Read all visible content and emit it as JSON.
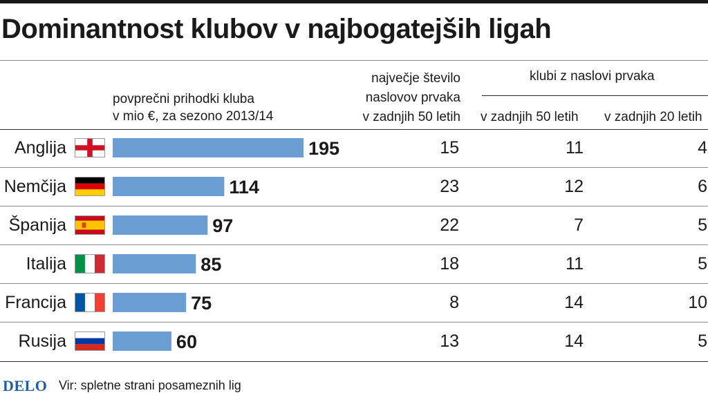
{
  "title": "Dominantnost klubov v najbogatejših ligah",
  "headers": {
    "revenue_line1": "povprečni prihodki kluba",
    "revenue_line2": "v mio €, za sezono 2013/14",
    "most_titles_line1": "največje število",
    "most_titles_line2": "naslovov prvaka",
    "most_titles_line3": "v zadnjih 50 letih",
    "champions_group": "klubi z naslovi prvaka",
    "last50": "v zadnjih 50 letih",
    "last20": "v zadnjih 20 letih"
  },
  "footer": {
    "logo": "DELO",
    "source": "Vir: spletne strani posameznih lig"
  },
  "colors": {
    "bar": "#6b9fd4",
    "logo": "#1f5fa6"
  },
  "chart_data": {
    "type": "table",
    "title": "Dominantnost klubov v najbogatejših ligah",
    "columns": [
      "povprečni prihodki kluba v mio €, za sezono 2013/14",
      "največje število naslovov prvaka v zadnjih 50 letih",
      "klubi z naslovi prvaka v zadnjih 50 letih",
      "klubi z naslovi prvaka v zadnjih 20 letih"
    ],
    "rows": [
      {
        "country": "Anglija",
        "flag": "england-flag-icon",
        "revenue": 195,
        "most_titles": 15,
        "clubs_50": 11,
        "clubs_20": 4
      },
      {
        "country": "Nemčija",
        "flag": "germany-flag-icon",
        "revenue": 114,
        "most_titles": 23,
        "clubs_50": 12,
        "clubs_20": 6
      },
      {
        "country": "Španija",
        "flag": "spain-flag-icon",
        "revenue": 97,
        "most_titles": 22,
        "clubs_50": 7,
        "clubs_20": 5
      },
      {
        "country": "Italija",
        "flag": "italy-flag-icon",
        "revenue": 85,
        "most_titles": 18,
        "clubs_50": 11,
        "clubs_20": 5
      },
      {
        "country": "Francija",
        "flag": "france-flag-icon",
        "revenue": 75,
        "most_titles": 8,
        "clubs_50": 14,
        "clubs_20": 10
      },
      {
        "country": "Rusija",
        "flag": "russia-flag-icon",
        "revenue": 60,
        "most_titles": 13,
        "clubs_50": 14,
        "clubs_20": 5
      }
    ],
    "bar_scale_max": 195
  }
}
